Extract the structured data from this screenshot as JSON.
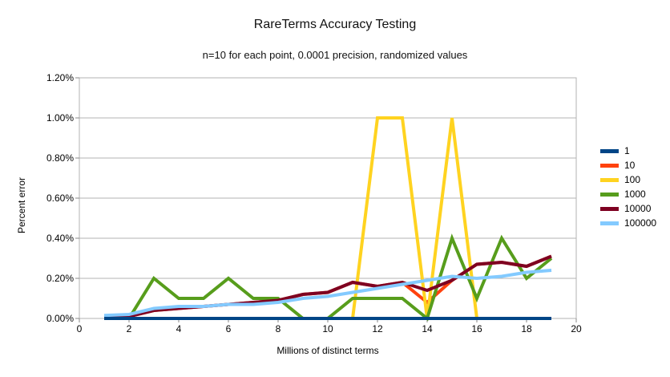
{
  "chart_data": {
    "type": "line",
    "title": "RareTerms Accuracy Testing",
    "subtitle": "n=10 for each point, 0.0001 precision, randomized values",
    "xlabel": "Millions of distinct terms",
    "ylabel": "Percent error",
    "xlim": [
      0,
      20
    ],
    "ylim": [
      0,
      1.2
    ],
    "y_unit": "percent",
    "grid": "horizontal",
    "grid_color": "#b3b3b3",
    "tick_color": "#8a8a8a",
    "legend_position": "right",
    "x": [
      1,
      2,
      3,
      4,
      5,
      6,
      7,
      8,
      9,
      10,
      11,
      12,
      13,
      14,
      15,
      16,
      17,
      18,
      19
    ],
    "x_ticks": [
      {
        "value": 0,
        "label": "0"
      },
      {
        "value": 2,
        "label": "2"
      },
      {
        "value": 4,
        "label": "4"
      },
      {
        "value": 6,
        "label": "6"
      },
      {
        "value": 8,
        "label": "8"
      },
      {
        "value": 10,
        "label": "10"
      },
      {
        "value": 12,
        "label": "12"
      },
      {
        "value": 14,
        "label": "14"
      },
      {
        "value": 16,
        "label": "16"
      },
      {
        "value": 18,
        "label": "18"
      },
      {
        "value": 20,
        "label": "20"
      }
    ],
    "y_ticks": [
      {
        "value": 0.0,
        "label": "0.00%"
      },
      {
        "value": 0.2,
        "label": "0.20%"
      },
      {
        "value": 0.4,
        "label": "0.40%"
      },
      {
        "value": 0.6,
        "label": "0.60%"
      },
      {
        "value": 0.8,
        "label": "0.80%"
      },
      {
        "value": 1.0,
        "label": "1.00%"
      },
      {
        "value": 1.2,
        "label": "1.20%"
      }
    ],
    "series": [
      {
        "name": "1",
        "color": "#004586",
        "values": [
          0,
          0,
          0,
          0,
          0,
          0,
          0,
          0,
          0,
          0,
          0,
          0,
          0,
          0,
          0,
          0,
          0,
          0,
          0
        ]
      },
      {
        "name": "10",
        "color": "#ff420e",
        "values": [
          0.01,
          0.01,
          0.04,
          0.05,
          0.06,
          0.07,
          0.08,
          0.09,
          0.12,
          0.13,
          0.18,
          0.16,
          0.18,
          0.08,
          0.19,
          0.27,
          0.28,
          0.26,
          0.31
        ]
      },
      {
        "name": "100",
        "color": "#ffd320",
        "values": [
          0,
          0,
          0,
          0,
          0,
          0,
          0,
          0,
          0,
          0,
          0,
          1.0,
          1.0,
          0,
          1.0,
          0,
          0,
          0,
          0
        ]
      },
      {
        "name": "1000",
        "color": "#579d1c",
        "values": [
          0,
          0,
          0.2,
          0.1,
          0.1,
          0.2,
          0.1,
          0.1,
          0,
          0,
          0.1,
          0.1,
          0.1,
          0,
          0.4,
          0.1,
          0.4,
          0.2,
          0.3
        ]
      },
      {
        "name": "10000",
        "color": "#7e0021",
        "values": [
          0.01,
          0.01,
          0.04,
          0.05,
          0.06,
          0.07,
          0.08,
          0.09,
          0.12,
          0.13,
          0.18,
          0.16,
          0.18,
          0.14,
          0.19,
          0.27,
          0.28,
          0.26,
          0.31
        ]
      },
      {
        "name": "100000",
        "color": "#83caff",
        "values": [
          0.015,
          0.02,
          0.05,
          0.06,
          0.06,
          0.07,
          0.07,
          0.08,
          0.1,
          0.11,
          0.13,
          0.15,
          0.17,
          0.19,
          0.21,
          0.2,
          0.21,
          0.23,
          0.24
        ]
      }
    ],
    "draw_order": [
      "10",
      "100",
      "1000",
      "10000",
      "100000",
      "1"
    ],
    "line_width": 4
  }
}
